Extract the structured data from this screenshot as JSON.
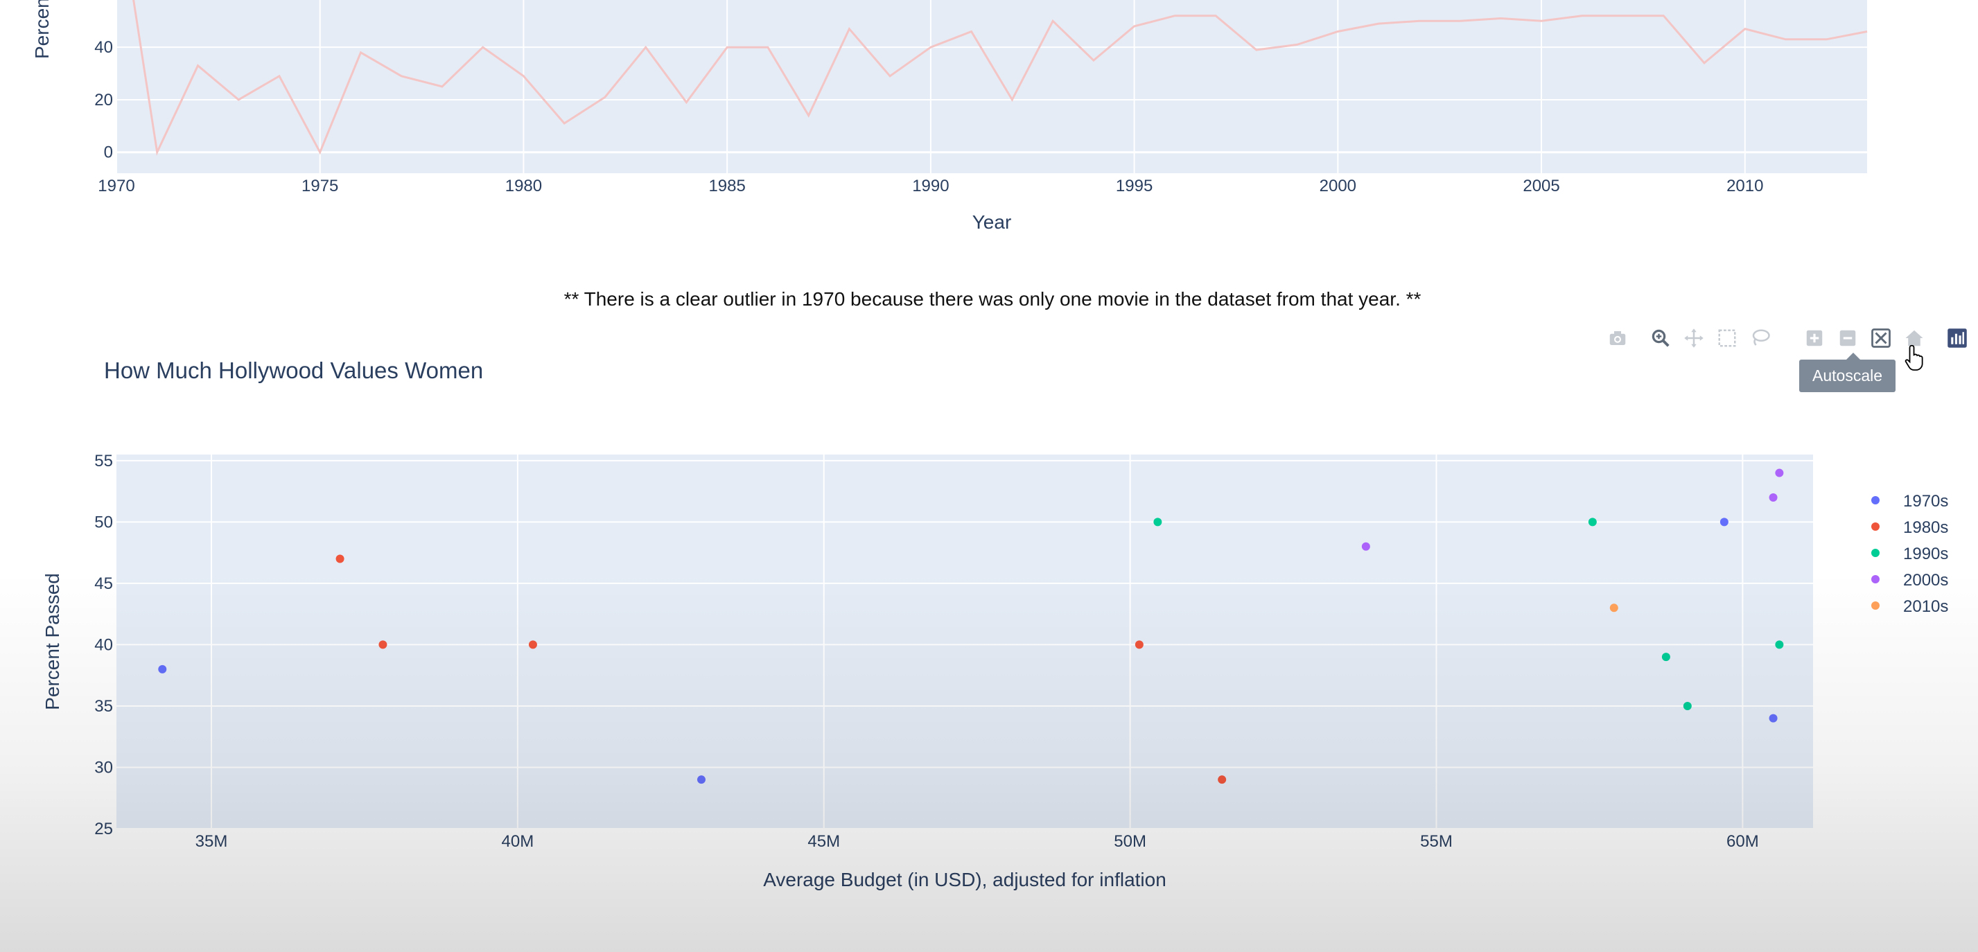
{
  "top_chart": {
    "type": "line",
    "ylabel": "Percen",
    "xlabel": "Year",
    "color": "#f4c5c5",
    "xlim": [
      1970,
      2013
    ],
    "ylim": [
      -8,
      58
    ],
    "x_ticks": [
      "1970",
      "1975",
      "1980",
      "1985",
      "1990",
      "1995",
      "2000",
      "2005",
      "2010"
    ],
    "y_ticks": [
      "0",
      "20",
      "40"
    ],
    "x": [
      1970,
      1971,
      1972,
      1973,
      1974,
      1975,
      1976,
      1977,
      1978,
      1979,
      1980,
      1981,
      1982,
      1983,
      1984,
      1985,
      1986,
      1987,
      1988,
      1989,
      1990,
      1991,
      1992,
      1993,
      1994,
      1995,
      1996,
      1997,
      1998,
      1999,
      2000,
      2001,
      2002,
      2003,
      2004,
      2005,
      2006,
      2007,
      2008,
      2009,
      2010,
      2011,
      2012,
      2013
    ],
    "y": [
      100,
      0,
      33,
      20,
      29,
      0,
      38,
      29,
      25,
      40,
      29,
      11,
      21,
      40,
      19,
      40,
      40,
      14,
      47,
      29,
      40,
      46,
      20,
      50,
      35,
      48,
      52,
      52,
      39,
      41,
      46,
      49,
      50,
      50,
      51,
      50,
      52,
      52,
      52,
      34,
      47,
      43,
      43,
      46
    ]
  },
  "note": "** There is a clear outlier in 1970 because there was only one movie in the dataset from that year. **",
  "chart_data": {
    "type": "scatter",
    "title": "How Much Hollywood Values Women",
    "xlabel": "Average Budget (in USD), adjusted for inflation",
    "ylabel": "Percent Passed",
    "xlim": [
      33450000,
      61150000
    ],
    "ylim": [
      25,
      55.5
    ],
    "x_ticks": [
      "35M",
      "40M",
      "45M",
      "50M",
      "55M",
      "60M"
    ],
    "y_ticks": [
      "25",
      "30",
      "35",
      "40",
      "45",
      "50",
      "55"
    ],
    "grid": true,
    "legend_position": "right",
    "series": [
      {
        "name": "1970s",
        "color": "#636efa",
        "points": [
          [
            34200000,
            38
          ],
          [
            43000000,
            29
          ],
          [
            59700000,
            50
          ],
          [
            60500000,
            34
          ]
        ]
      },
      {
        "name": "1980s",
        "color": "#ef553b",
        "points": [
          [
            37100000,
            47
          ],
          [
            37800000,
            40
          ],
          [
            40250000,
            40
          ],
          [
            50150000,
            40
          ],
          [
            51500000,
            29
          ]
        ]
      },
      {
        "name": "1990s",
        "color": "#00cc96",
        "points": [
          [
            50450000,
            50
          ],
          [
            57550000,
            50
          ],
          [
            58750000,
            39
          ],
          [
            59100000,
            35
          ],
          [
            60600000,
            40
          ]
        ]
      },
      {
        "name": "2000s",
        "color": "#ab63fa",
        "points": [
          [
            53850000,
            48
          ],
          [
            60500000,
            52
          ],
          [
            60600000,
            54
          ]
        ]
      },
      {
        "name": "2010s",
        "color": "#ffa15a",
        "points": [
          [
            57900000,
            43
          ]
        ]
      }
    ]
  },
  "modebar": {
    "tooltip": "Autoscale",
    "icons": [
      "camera-icon",
      "zoom-icon",
      "pan-icon",
      "box-select-icon",
      "lasso-select-icon",
      "zoom-in-icon",
      "zoom-out-icon",
      "autoscale-icon",
      "reset-axes-icon",
      "plotly-logo-icon"
    ]
  }
}
